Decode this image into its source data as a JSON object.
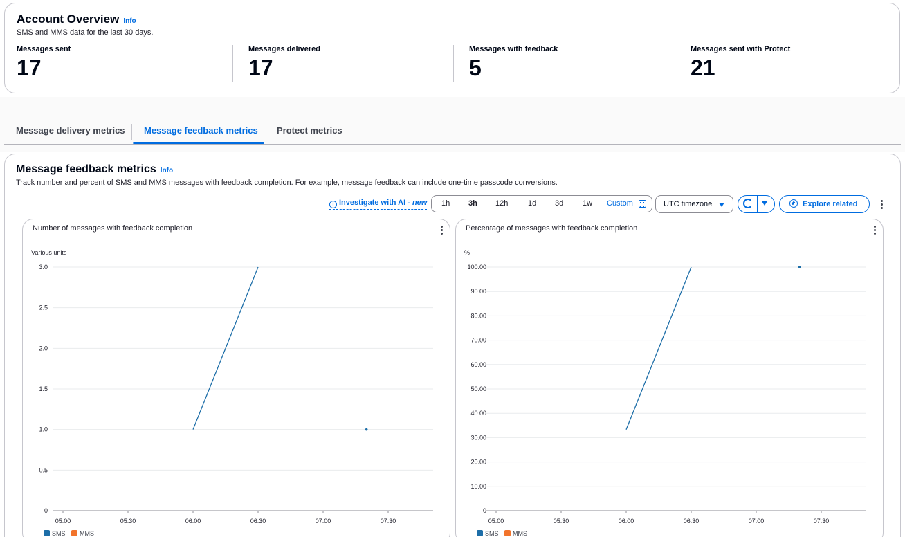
{
  "overview": {
    "title": "Account Overview",
    "info": "Info",
    "subtitle": "SMS and MMS data for the last 30 days.",
    "stats": [
      {
        "label": "Messages sent",
        "value": "17"
      },
      {
        "label": "Messages delivered",
        "value": "17"
      },
      {
        "label": "Messages with feedback",
        "value": "5"
      },
      {
        "label": "Messages sent with Protect",
        "value": "21"
      }
    ]
  },
  "tabs": [
    {
      "label": "Message delivery metrics",
      "active": false
    },
    {
      "label": "Message feedback metrics",
      "active": true
    },
    {
      "label": "Protect metrics",
      "active": false
    }
  ],
  "metrics": {
    "title": "Message feedback metrics",
    "info": "Info",
    "subtitle": "Track number and percent of SMS and MMS messages with feedback completion. For example, message feedback can include one-time passcode conversions.",
    "ai_link": "Investigate with AI - ",
    "ai_new": "new",
    "ranges": [
      "1h",
      "3h",
      "12h",
      "1d",
      "3d",
      "1w"
    ],
    "selected_range": "3h",
    "custom_label": "Custom",
    "timezone": "UTC timezone",
    "explore": "Explore related"
  },
  "colors": {
    "accent": "#006ce0",
    "sms": "#1d6ea8",
    "mms": "#f2742b"
  },
  "chart_data": [
    {
      "type": "line",
      "title": "Number of messages with feedback completion",
      "ylabel": "Various units",
      "ylim": [
        0,
        3
      ],
      "yticks": [
        "0",
        "0.5",
        "1.0",
        "1.5",
        "2.0",
        "2.5",
        "3.0"
      ],
      "xticks": [
        "05:00",
        "05:30",
        "06:00",
        "06:30",
        "07:00",
        "07:30"
      ],
      "series": [
        {
          "name": "SMS",
          "points": [
            [
              "06:00",
              1
            ],
            [
              "06:30",
              3
            ],
            [
              "07:20",
              1
            ]
          ],
          "segments": [
            [
              0,
              1
            ]
          ],
          "dots": [
            2
          ]
        },
        {
          "name": "MMS",
          "points": []
        }
      ]
    },
    {
      "type": "line",
      "title": "Percentage of messages with feedback completion",
      "ylabel": "%",
      "ylim": [
        0,
        100
      ],
      "yticks": [
        "0",
        "10.00",
        "20.00",
        "30.00",
        "40.00",
        "50.00",
        "60.00",
        "70.00",
        "80.00",
        "90.00",
        "100.00"
      ],
      "xticks": [
        "05:00",
        "05:30",
        "06:00",
        "06:30",
        "07:00",
        "07:30"
      ],
      "series": [
        {
          "name": "SMS",
          "points": [
            [
              "06:00",
              33.3
            ],
            [
              "06:30",
              100
            ],
            [
              "07:20",
              100
            ]
          ],
          "segments": [
            [
              0,
              1
            ]
          ],
          "dots": [
            2
          ]
        },
        {
          "name": "MMS",
          "points": []
        }
      ]
    }
  ]
}
